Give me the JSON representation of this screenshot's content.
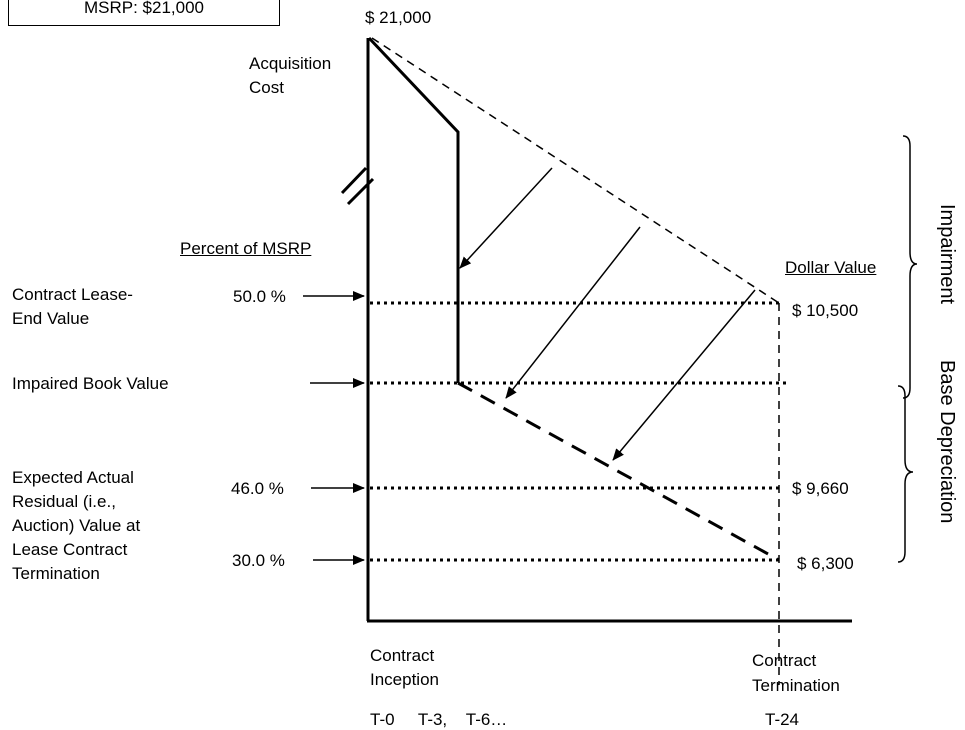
{
  "msrp_box": "MSRP: $21,000",
  "top_value": "$  21,000",
  "acquisition_cost": [
    "Acquisition",
    "Cost"
  ],
  "percent_header": "Percent of MSRP",
  "dollar_header": "Dollar Value",
  "rows": {
    "contract_lease_end": {
      "label": [
        "Contract Lease-",
        "End Value"
      ],
      "percent": "50.0 %",
      "dollar": "$ 10,500"
    },
    "impaired_book": {
      "label": [
        "Impaired Book Value"
      ]
    },
    "expected_actual": {
      "label": [
        "Expected Actual",
        "Residual (i.e.,",
        "Auction) Value at",
        "Lease Contract",
        "Termination"
      ],
      "percent": "46.0 %",
      "dollar": "$ 9,660"
    },
    "thirty": {
      "percent": "30.0 %",
      "dollar": "$ 6,300"
    }
  },
  "x_labels": {
    "inception": [
      "Contract",
      "Inception"
    ],
    "termination": [
      "Contract",
      "Termination"
    ],
    "ticks_left": "T-0     T-3,    T-6…",
    "tick_right": "T-24"
  },
  "brace_labels": {
    "impairment": "Impairment",
    "base_depreciation": "Base Depreciation"
  }
}
